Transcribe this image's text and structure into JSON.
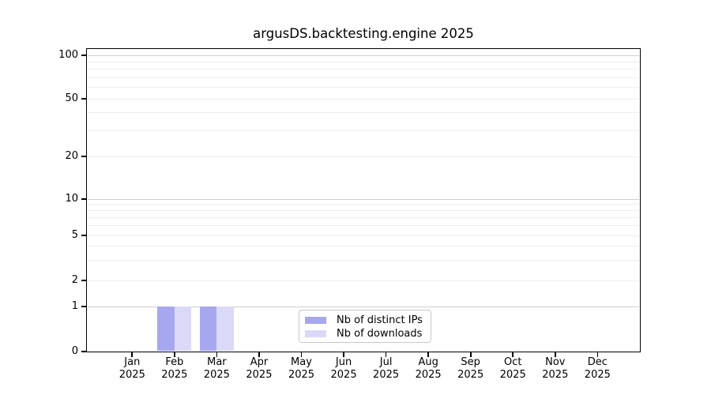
{
  "chart_data": {
    "type": "bar",
    "title": "argusDS.backtesting.engine 2025",
    "xlabel": "",
    "ylabel": "",
    "yscale": "symlog",
    "ylim": [
      0,
      110
    ],
    "grid": true,
    "legend_position": "lower center inside plot",
    "categories": [
      "Jan 2025",
      "Feb 2025",
      "Mar 2025",
      "Apr 2025",
      "May 2025",
      "Jun 2025",
      "Jul 2025",
      "Aug 2025",
      "Sep 2025",
      "Oct 2025",
      "Nov 2025",
      "Dec 2025"
    ],
    "y_ticks": [
      0,
      1,
      2,
      5,
      10,
      20,
      50,
      100
    ],
    "y_major_gridlines": [
      1,
      10,
      100
    ],
    "y_minor_gridlines": [
      2,
      3,
      4,
      5,
      6,
      7,
      8,
      9,
      20,
      30,
      40,
      50,
      60,
      70,
      80,
      90
    ],
    "series": [
      {
        "name": "Nb of distinct IPs",
        "color": "#a7a7f0",
        "values": [
          0,
          1,
          1,
          0,
          0,
          0,
          0,
          0,
          0,
          0,
          0,
          0
        ]
      },
      {
        "name": "Nb of downloads",
        "color": "#dadaf8",
        "values": [
          0,
          1,
          1,
          0,
          0,
          0,
          0,
          0,
          0,
          0,
          0,
          0
        ]
      }
    ],
    "colors": {
      "major_grid": "#d0d0d0",
      "minor_grid": "#eeeeee",
      "spine": "#000000",
      "text": "#000000"
    }
  }
}
